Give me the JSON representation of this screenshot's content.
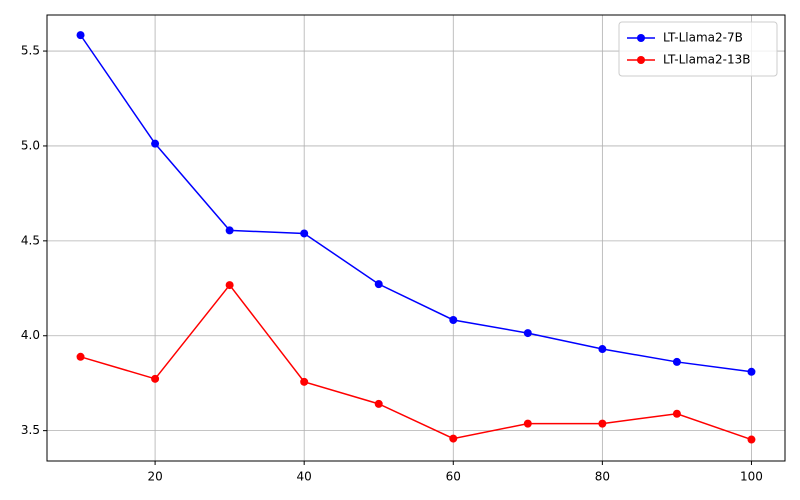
{
  "chart_data": {
    "type": "line",
    "x": [
      10,
      20,
      30,
      40,
      50,
      60,
      70,
      80,
      90,
      100
    ],
    "series": [
      {
        "name": "LT-Llama2-7B",
        "color": "#0000ff",
        "values": [
          5.584,
          5.012,
          4.555,
          4.539,
          4.272,
          4.083,
          4.014,
          3.93,
          3.862,
          3.81
        ]
      },
      {
        "name": "LT-Llama2-13B",
        "color": "#ff0000",
        "values": [
          3.889,
          3.773,
          4.267,
          3.757,
          3.641,
          3.458,
          3.537,
          3.537,
          3.589,
          3.453
        ]
      }
    ],
    "xlim": [
      5.5,
      104.5
    ],
    "xticks": [
      20,
      40,
      60,
      80,
      100
    ],
    "ylim": [
      3.34,
      5.69
    ],
    "yticks": [
      3.5,
      {
        "value": 4,
        "label": "4.0"
      },
      4.5,
      {
        "value": 5,
        "label": "5.0"
      },
      5.5
    ],
    "grid": true,
    "legend": "upper right"
  }
}
